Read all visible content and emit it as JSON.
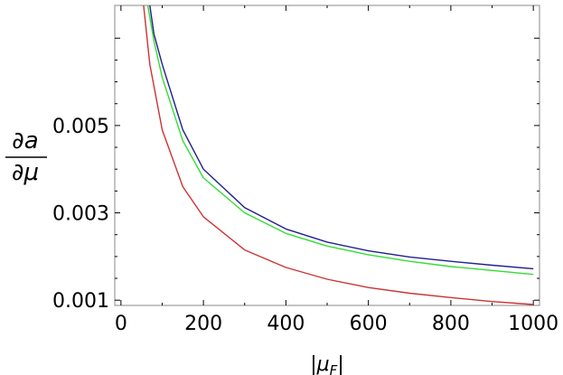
{
  "chart_data": {
    "type": "line",
    "title": "",
    "xlabel": "|μ_F|",
    "ylabel": "∂a / ∂μ",
    "xlim": [
      -15,
      1015
    ],
    "ylim": [
      0.00088,
      0.00775
    ],
    "xticks": [
      0,
      200,
      400,
      600,
      800,
      1000
    ],
    "xtick_labels": [
      "0",
      "200",
      "400",
      "600",
      "800",
      "1000"
    ],
    "yticks": [
      0.001,
      0.003,
      0.005
    ],
    "ytick_labels": [
      "0.001",
      "0.003",
      "0.005"
    ],
    "grid": false,
    "legend": "none",
    "series": [
      {
        "color": "#1f1f8f",
        "x": [
          70,
          80,
          100,
          150,
          200,
          300,
          400,
          500,
          600,
          700,
          800,
          900,
          1000
        ],
        "y": [
          0.00775,
          0.0071,
          0.0064,
          0.0049,
          0.004,
          0.00312,
          0.00263,
          0.00233,
          0.00213,
          0.00199,
          0.00189,
          0.0018,
          0.00172
        ]
      },
      {
        "color": "#33dd33",
        "x": [
          65,
          80,
          100,
          150,
          200,
          300,
          400,
          500,
          600,
          700,
          800,
          900,
          1000
        ],
        "y": [
          0.00775,
          0.00694,
          0.0061,
          0.00465,
          0.0038,
          0.003,
          0.00253,
          0.00224,
          0.00204,
          0.00189,
          0.00177,
          0.00168,
          0.00159
        ]
      },
      {
        "color": "#cc3333",
        "x": [
          55,
          70,
          100,
          150,
          200,
          300,
          400,
          500,
          600,
          700,
          800,
          900,
          1000
        ],
        "y": [
          0.00775,
          0.0064,
          0.0049,
          0.0036,
          0.00291,
          0.00215,
          0.00175,
          0.00148,
          0.00129,
          0.00116,
          0.00106,
          0.00097,
          0.0009
        ]
      }
    ]
  }
}
